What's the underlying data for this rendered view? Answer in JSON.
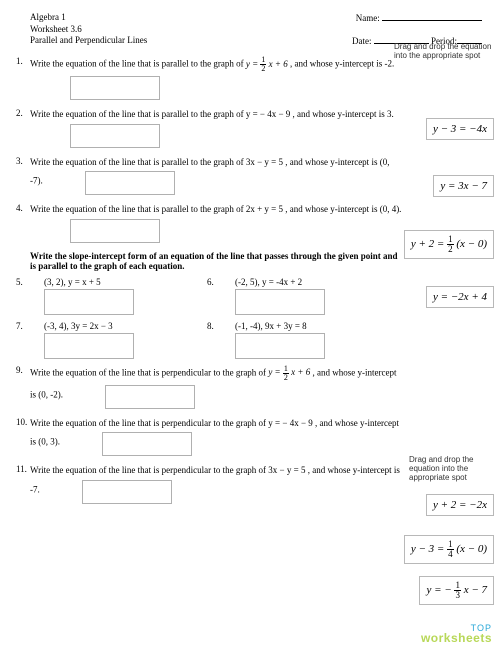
{
  "header": {
    "course": "Algebra 1",
    "worksheet": "Worksheet 3.6",
    "topic": "Parallel and Perpendicular Lines",
    "name_label": "Name:",
    "date_label": "Date:",
    "period_label": "Period:"
  },
  "hints": {
    "top": "Drag and drop the equation into the appropriate spot",
    "bottom": "Drag and drop the equation into the appropriate spot"
  },
  "questions": {
    "q1": {
      "num": "1.",
      "pre": "Write the equation of the line that is parallel to the graph of  ",
      "eq": "y = ",
      "frac_n": "1",
      "frac_d": "2",
      "eq2": " x + 6",
      "post": " , and whose y-intercept is -2."
    },
    "q2": {
      "num": "2.",
      "text": "Write the equation of the line that is parallel to the graph of  y = − 4x − 9 , and whose y-intercept is 3."
    },
    "q3": {
      "num": "3.",
      "text": "Write the equation of the line that is parallel to the graph of  3x − y = 5 , and whose y-intercept is (0, -7)."
    },
    "q4": {
      "num": "4.",
      "text": "Write the equation of the line that is parallel to the graph of  2x + y = 5 , and whose y-intercept is (0, 4)."
    },
    "q5": {
      "num": "5.",
      "text": "(3, 2),  y = x + 5"
    },
    "q6": {
      "num": "6.",
      "text": "(-2, 5),  y = -4x + 2"
    },
    "q7": {
      "num": "7.",
      "text": "(-3, 4),  3y = 2x − 3"
    },
    "q8": {
      "num": "8.",
      "text": "(-1, -4),  9x + 3y = 8"
    },
    "q9": {
      "num": "9.",
      "pre": "Write the equation of the line that is perpendicular to the graph of  ",
      "eq": "y = ",
      "frac_n": "1",
      "frac_d": "2",
      "eq2": " x + 6",
      "post": " , and whose y-intercept is (0, -2)."
    },
    "q10": {
      "num": "10.",
      "text": "Write the equation of the line that is perpendicular to the graph of  y = − 4x − 9 , and whose y-intercept is (0, 3)."
    },
    "q11": {
      "num": "11.",
      "text": "Write the equation of the line that is perpendicular to the graph of  3x − y = 5 , and whose y-intercept is -7."
    }
  },
  "section_header": "Write the slope-intercept form of an equation of the line that passes through the given point and is parallel to the graph of each equation.",
  "chips": {
    "c1": "y − 3 = −4x",
    "c2": "y = 3x − 7",
    "c3_pre": "y + 2 = ",
    "c3_n": "1",
    "c3_d": "2",
    "c3_post": " (x − 0)",
    "c4": "y = −2x + 4",
    "c5": "y + 2 = −2x",
    "c6_pre": "y − 3 = ",
    "c6_n": "1",
    "c6_d": "4",
    "c6_post": " (x − 0)",
    "c7_pre": "y = − ",
    "c7_n": "1",
    "c7_d": "3",
    "c7_post": " x − 7"
  },
  "chip_positions": {
    "c1": 118,
    "c2": 175,
    "c3": 230,
    "c4": 286,
    "c5": 494,
    "c6": 535,
    "c7": 576
  },
  "watermark": {
    "top": "TOP",
    "bot": "worksheets"
  }
}
